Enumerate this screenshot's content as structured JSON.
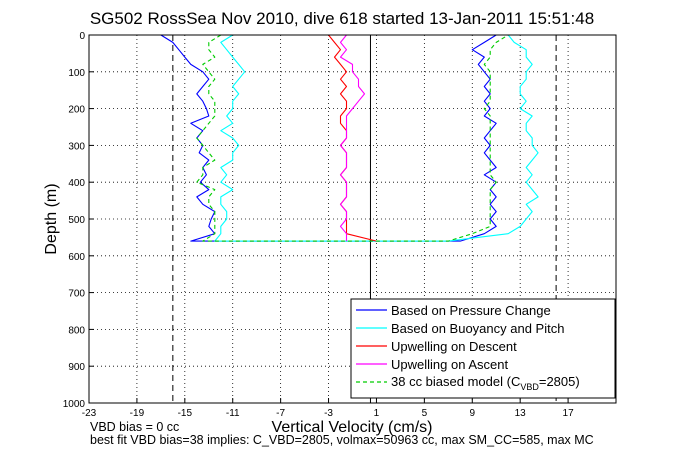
{
  "chart_data": {
    "type": "line",
    "title": "SG502 RossSea Nov 2010, dive 618 started 13-Jan-2011 15:51:48",
    "xlabel": "Vertical Velocity (cm/s)",
    "ylabel": "Depth (m)",
    "xlim": [
      -23,
      21
    ],
    "ylim": [
      0,
      1000
    ],
    "y_reversed": true,
    "grid": true,
    "x_ticks": [
      "-23",
      "-19",
      "-15",
      "-11",
      "-7",
      "-3",
      "1",
      "5",
      "9",
      "13",
      "17"
    ],
    "y_ticks": [
      "0",
      "100",
      "200",
      "300",
      "400",
      "500",
      "600",
      "700",
      "800",
      "900",
      "1000"
    ],
    "legend_position": "bottom-right",
    "legend": {
      "pressure": "Based on Pressure Change",
      "buoyancy": "Based on Buoyancy and Pitch",
      "descent": "Upwelling on Descent",
      "ascent": "Upwelling on Ascent",
      "model_prefix": "38 cc biased model (C",
      "model_sub": "VBD",
      "model_suffix": "=2805)"
    },
    "colors": {
      "pressure": "#0000ff",
      "buoyancy": "#00ffff",
      "descent": "#ff0000",
      "ascent": "#ff00ff",
      "model": "#00cc00",
      "refline": "#000000"
    },
    "reference_lines": {
      "dashed_x": [
        -16,
        16
      ],
      "solid_x": 0.5
    },
    "series": [
      {
        "name": "Based on Pressure Change",
        "key": "pressure",
        "descent": {
          "depth": [
            0,
            20,
            40,
            60,
            80,
            100,
            120,
            140,
            160,
            180,
            200,
            220,
            240,
            260,
            280,
            300,
            320,
            340,
            360,
            380,
            400,
            420,
            440,
            460,
            480,
            500,
            520,
            540,
            560
          ],
          "value": [
            -17,
            -16,
            -15.5,
            -15,
            -14.5,
            -13.5,
            -13,
            -13.5,
            -14,
            -13.5,
            -13.2,
            -13,
            -14.5,
            -13.5,
            -14,
            -13.5,
            -13.8,
            -13,
            -13.5,
            -13.2,
            -13.7,
            -13,
            -14,
            -13.5,
            -12.5,
            -12.8,
            -13,
            -12.5,
            -14.5
          ]
        },
        "ascent": {
          "depth": [
            560,
            540,
            520,
            500,
            480,
            460,
            440,
            420,
            400,
            380,
            360,
            340,
            320,
            300,
            280,
            260,
            240,
            220,
            200,
            180,
            160,
            140,
            120,
            100,
            80,
            60,
            40,
            20,
            0
          ],
          "value": [
            8,
            10,
            11,
            10.5,
            11,
            10.5,
            11,
            10.5,
            11,
            10,
            11,
            10.5,
            10,
            10.5,
            10,
            10.5,
            11,
            10,
            10.5,
            10,
            10.5,
            10,
            10.5,
            10,
            9.5,
            10,
            9,
            10,
            11
          ]
        }
      },
      {
        "name": "Based on Buoyancy and Pitch",
        "key": "buoyancy",
        "descent": {
          "depth": [
            0,
            20,
            40,
            60,
            80,
            100,
            120,
            140,
            160,
            180,
            200,
            220,
            240,
            260,
            280,
            300,
            320,
            340,
            360,
            380,
            400,
            420,
            440,
            460,
            480,
            500,
            520,
            540,
            560
          ],
          "value": [
            -11,
            -12,
            -11.5,
            -11,
            -10.5,
            -10,
            -10.5,
            -11,
            -10.5,
            -11,
            -11,
            -11.5,
            -11,
            -12,
            -11,
            -10.5,
            -11,
            -11,
            -12,
            -11.5,
            -12,
            -11,
            -12,
            -12,
            -11.5,
            -11.5,
            -12,
            -12,
            -12.5
          ]
        },
        "ascent": {
          "depth": [
            560,
            540,
            520,
            500,
            480,
            460,
            440,
            420,
            400,
            380,
            360,
            340,
            320,
            300,
            280,
            260,
            240,
            220,
            200,
            180,
            160,
            140,
            120,
            100,
            80,
            60,
            40,
            20,
            0
          ],
          "value": [
            7,
            12,
            13,
            13.5,
            14,
            13.5,
            14.5,
            14,
            13.5,
            14,
            13.5,
            14,
            14.5,
            14,
            14,
            13.5,
            13.5,
            14,
            13,
            13.5,
            13,
            13,
            13.5,
            13.5,
            14,
            13.5,
            13.5,
            12.5,
            12
          ]
        }
      },
      {
        "name": "Upwelling on Descent",
        "key": "descent",
        "depth": [
          0,
          20,
          40,
          60,
          80,
          100,
          120,
          140,
          160,
          180,
          200,
          220,
          240,
          260,
          280,
          300,
          320,
          340,
          360,
          380,
          400,
          420,
          440,
          460,
          480,
          500,
          520,
          540,
          560
        ],
        "value": [
          -3,
          -2.5,
          -2,
          -2.5,
          -2,
          -1.5,
          -2,
          -1.5,
          -2,
          -1.5,
          -1.5,
          -2,
          -2,
          -1.5,
          -1.5,
          -2,
          -1.5,
          -1.5,
          -1.5,
          -2,
          -1.5,
          -1.5,
          -1.5,
          -2,
          -1.5,
          -1.5,
          -1.5,
          -1.5,
          1
        ]
      },
      {
        "name": "Upwelling on Ascent",
        "key": "ascent",
        "depth": [
          560,
          540,
          520,
          500,
          480,
          460,
          440,
          420,
          400,
          380,
          360,
          340,
          320,
          300,
          280,
          260,
          240,
          220,
          200,
          180,
          160,
          140,
          120,
          100,
          80,
          60,
          40,
          20,
          0
        ],
        "value": [
          -1.5,
          -1.5,
          -2,
          -1.5,
          -1.5,
          -2,
          -1.5,
          -1.5,
          -1.5,
          -2,
          -1.5,
          -1.5,
          -1.5,
          -2,
          -1.5,
          -1.5,
          -1.5,
          -1.5,
          -1,
          -0.5,
          0,
          -0.5,
          -0.5,
          -1,
          -1,
          -2,
          -1.5,
          -2,
          -1.5
        ]
      },
      {
        "name": "38 cc biased model (CVBD=2805)",
        "key": "model",
        "descent": {
          "depth": [
            0,
            20,
            40,
            60,
            80,
            100,
            120,
            140,
            160,
            180,
            200,
            220,
            240,
            260,
            280,
            300,
            320,
            340,
            360,
            380,
            400,
            420,
            440,
            460,
            480,
            500,
            520,
            540,
            560
          ],
          "value": [
            -12,
            -13,
            -13,
            -12.5,
            -13.5,
            -13,
            -12.5,
            -13,
            -13,
            -12.5,
            -12.5,
            -12.5,
            -13,
            -13.5,
            -14,
            -13.5,
            -13,
            -12.5,
            -13.5,
            -13.5,
            -14,
            -12.5,
            -13,
            -13,
            -12.5,
            -12.5,
            -12.5,
            -12.5,
            -13.5
          ]
        },
        "ascent": {
          "depth": [
            560,
            540,
            520,
            500,
            480,
            460,
            440,
            420,
            400,
            380,
            360,
            340,
            320,
            300,
            280,
            260,
            240,
            220,
            200,
            180,
            160,
            140,
            120,
            100,
            80,
            60,
            40,
            20,
            0
          ],
          "value": [
            7,
            9,
            10.5,
            10.5,
            10.5,
            10.5,
            10.5,
            10.5,
            11,
            10.5,
            10.5,
            10.5,
            10.5,
            10.5,
            10.5,
            10.5,
            10.5,
            10.5,
            10,
            10.5,
            10.5,
            10.5,
            10.5,
            10.5,
            10,
            10.5,
            10.5,
            11,
            12
          ]
        }
      }
    ]
  },
  "footer": {
    "line1": "VBD bias = 0 cc",
    "line2": "best fit VBD bias=38 implies: C_VBD=2805, volmax=50963 cc, max SM_CC=585, max MC"
  }
}
